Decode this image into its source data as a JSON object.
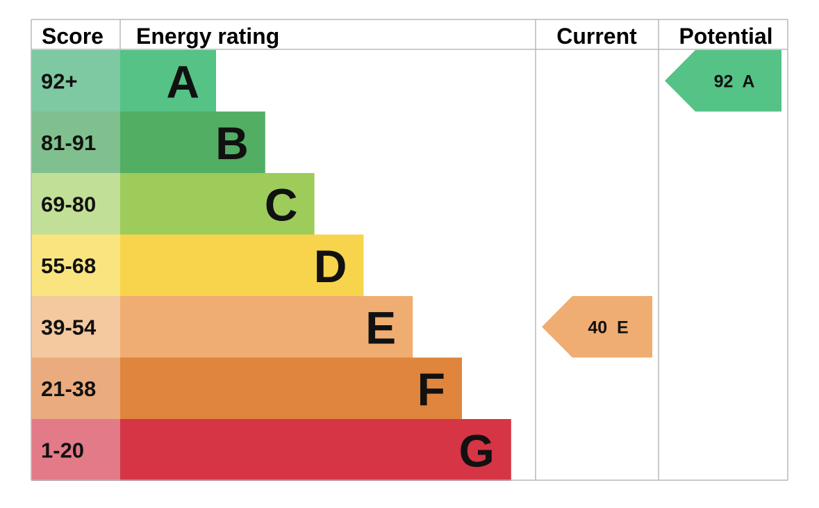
{
  "headers": {
    "score": "Score",
    "energy_rating": "Energy rating",
    "current": "Current",
    "potential": "Potential"
  },
  "chart_data": {
    "type": "bar",
    "title": "",
    "bands": [
      {
        "band": "A",
        "range": "92+",
        "bar_color": "#55c286",
        "score_color": "#7ec8a2"
      },
      {
        "band": "B",
        "range": "81-91",
        "bar_color": "#51ae62",
        "score_color": "#80c08e"
      },
      {
        "band": "C",
        "range": "69-80",
        "bar_color": "#9dcc5b",
        "score_color": "#c2df97"
      },
      {
        "band": "D",
        "range": "55-68",
        "bar_color": "#f7d44b",
        "score_color": "#fae47f"
      },
      {
        "band": "E",
        "range": "39-54",
        "bar_color": "#efad72",
        "score_color": "#f4c9a0"
      },
      {
        "band": "F",
        "range": "21-38",
        "bar_color": "#e0853d",
        "score_color": "#eaac7e"
      },
      {
        "band": "G",
        "range": "1-20",
        "bar_color": "#d53545",
        "score_color": "#e27a88"
      }
    ],
    "current": {
      "value": 40,
      "band": "E",
      "label": "40  E",
      "color": "#efad72"
    },
    "potential": {
      "value": 92,
      "band": "A",
      "label": "92  A",
      "color": "#55c286"
    }
  }
}
